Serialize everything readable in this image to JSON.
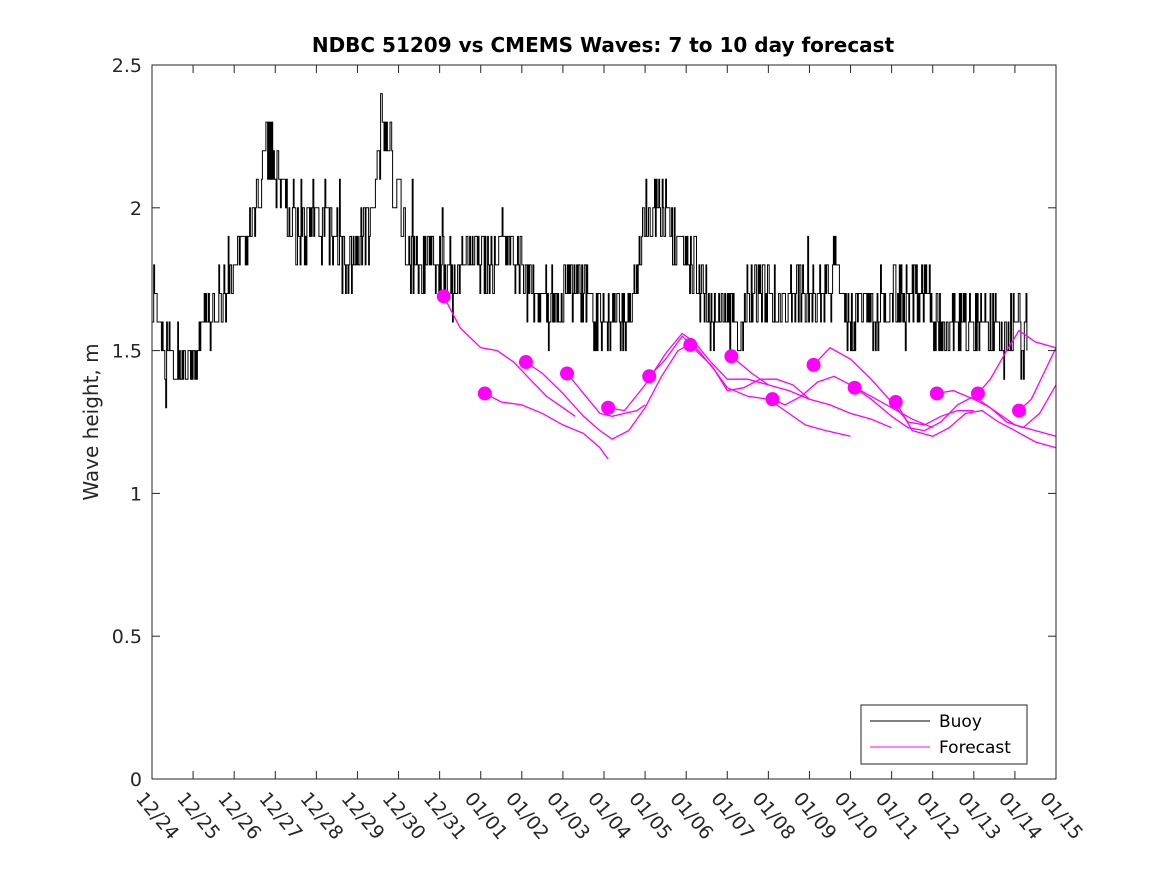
{
  "chart_data": {
    "type": "line",
    "title": "NDBC 51209 vs CMEMS Waves: 7 to 10 day forecast",
    "xlabel": "",
    "ylabel": "Wave height, m",
    "xlim": [
      0,
      22
    ],
    "ylim": [
      0,
      2.5
    ],
    "yticks": [
      0,
      0.5,
      1,
      1.5,
      2,
      2.5
    ],
    "ytick_labels": [
      "0",
      "0.5",
      "1",
      "1.5",
      "2",
      "2.5"
    ],
    "xtick_labels": [
      "12/24",
      "12/25",
      "12/26",
      "12/27",
      "12/28",
      "12/29",
      "12/30",
      "12/31",
      "01/01",
      "01/02",
      "01/03",
      "01/04",
      "01/05",
      "01/06",
      "01/07",
      "01/08",
      "01/09",
      "01/10",
      "01/11",
      "01/12",
      "01/13",
      "01/14",
      "01/15"
    ],
    "legend": {
      "location": "bottom-right",
      "entries": [
        "Buoy",
        "Forecast"
      ]
    },
    "colors": {
      "buoy": "#000000",
      "forecast": "#ff00ff",
      "axis": "#262626"
    },
    "buoy_envelope": {
      "x": [
        0,
        0.3,
        0.5,
        1.0,
        1.2,
        1.5,
        1.8,
        2.2,
        2.5,
        2.8,
        3.0,
        3.3,
        3.6,
        4.0,
        4.3,
        4.7,
        5.0,
        5.3,
        5.6,
        5.9,
        6.2,
        6.5,
        6.8,
        7.0,
        7.3,
        7.6,
        8.0,
        8.3,
        8.6,
        9.0,
        9.3,
        9.6,
        10.0,
        10.4,
        10.8,
        11.2,
        11.5,
        11.8,
        12.0,
        12.3,
        12.6,
        12.9,
        13.2,
        13.6,
        14.0,
        14.3,
        14.6,
        15.0,
        15.4,
        15.8,
        16.2,
        16.6,
        17.0,
        17.4,
        17.8,
        18.2,
        18.6,
        19.0,
        19.4,
        19.8,
        20.2,
        20.6,
        21.0,
        21.3
      ],
      "y": [
        1.65,
        1.55,
        1.45,
        1.45,
        1.55,
        1.65,
        1.75,
        1.85,
        1.95,
        2.25,
        2.15,
        1.95,
        1.95,
        1.95,
        1.95,
        1.8,
        1.85,
        1.95,
        2.3,
        2.1,
        1.85,
        1.8,
        1.8,
        1.8,
        1.75,
        1.8,
        1.85,
        1.8,
        1.9,
        1.75,
        1.7,
        1.65,
        1.7,
        1.75,
        1.6,
        1.65,
        1.6,
        1.75,
        1.95,
        2.05,
        1.9,
        1.85,
        1.8,
        1.6,
        1.65,
        1.6,
        1.7,
        1.7,
        1.65,
        1.7,
        1.7,
        1.75,
        1.6,
        1.6,
        1.65,
        1.7,
        1.7,
        1.65,
        1.55,
        1.6,
        1.6,
        1.55,
        1.55,
        1.5
      ]
    },
    "forecast_series": [
      {
        "start": 7.1,
        "x": [
          7.1,
          7.5,
          8.0,
          8.4,
          8.8,
          9.2,
          9.6,
          10.0,
          10.3
        ],
        "y": [
          1.69,
          1.58,
          1.51,
          1.5,
          1.46,
          1.4,
          1.34,
          1.3,
          1.27
        ]
      },
      {
        "start": 8.1,
        "x": [
          8.1,
          8.5,
          9.0,
          9.5,
          10.0,
          10.5,
          10.9,
          11.1
        ],
        "y": [
          1.35,
          1.32,
          1.31,
          1.28,
          1.24,
          1.21,
          1.16,
          1.12
        ]
      },
      {
        "start": 9.1,
        "x": [
          9.1,
          9.5,
          10.0,
          10.5,
          10.9,
          11.2,
          11.6,
          12.0,
          12.4,
          12.8,
          13.2
        ],
        "y": [
          1.46,
          1.42,
          1.35,
          1.27,
          1.22,
          1.19,
          1.22,
          1.3,
          1.41,
          1.5,
          1.53
        ]
      },
      {
        "start": 10.1,
        "x": [
          10.1,
          10.5,
          10.9,
          11.2,
          11.5,
          11.8,
          12.0
        ],
        "y": [
          1.42,
          1.35,
          1.28,
          1.27,
          1.28,
          1.29,
          1.31
        ]
      },
      {
        "start": 11.1,
        "x": [
          11.1,
          11.5,
          12.0,
          12.5,
          12.9,
          13.2,
          13.6,
          14.0,
          14.5,
          15.0
        ],
        "y": [
          1.3,
          1.29,
          1.38,
          1.49,
          1.56,
          1.53,
          1.46,
          1.4,
          1.4,
          1.38
        ]
      },
      {
        "start": 12.1,
        "x": [
          12.1,
          12.5,
          12.9,
          13.3,
          13.7,
          14.0,
          14.4,
          14.8,
          15.2,
          15.6,
          16.0
        ],
        "y": [
          1.41,
          1.47,
          1.55,
          1.5,
          1.43,
          1.36,
          1.37,
          1.4,
          1.4,
          1.38,
          1.33
        ]
      },
      {
        "start": 13.1,
        "x": [
          13.1,
          13.6,
          14.0,
          14.5,
          15.0,
          15.5,
          15.9,
          16.4,
          17.0
        ],
        "y": [
          1.52,
          1.45,
          1.37,
          1.34,
          1.33,
          1.28,
          1.24,
          1.22,
          1.2
        ]
      },
      {
        "start": 14.1,
        "x": [
          14.1,
          14.6,
          15.0,
          15.5,
          16.0,
          16.5,
          17.0,
          17.5,
          18.0
        ],
        "y": [
          1.48,
          1.42,
          1.38,
          1.36,
          1.33,
          1.31,
          1.28,
          1.26,
          1.23
        ]
      },
      {
        "start": 15.1,
        "x": [
          15.1,
          15.4,
          15.8,
          16.2,
          16.6,
          17.0,
          17.5,
          18.0,
          18.5,
          19.0
        ],
        "y": [
          1.33,
          1.31,
          1.34,
          1.39,
          1.41,
          1.38,
          1.34,
          1.3,
          1.26,
          1.23
        ]
      },
      {
        "start": 16.1,
        "x": [
          16.1,
          16.5,
          17.0,
          17.5,
          18.0,
          18.4,
          18.8,
          19.2,
          19.6,
          20.0
        ],
        "y": [
          1.45,
          1.51,
          1.47,
          1.4,
          1.32,
          1.25,
          1.24,
          1.27,
          1.29,
          1.29
        ]
      },
      {
        "start": 17.1,
        "x": [
          17.1,
          17.5,
          18.0,
          18.4,
          18.8,
          19.2,
          19.6,
          20.0,
          20.5,
          21.0,
          21.5,
          22.0
        ],
        "y": [
          1.37,
          1.33,
          1.27,
          1.23,
          1.22,
          1.25,
          1.31,
          1.34,
          1.29,
          1.24,
          1.22,
          1.2
        ]
      },
      {
        "start": 18.1,
        "x": [
          18.1,
          18.5,
          19.0,
          19.4,
          19.8,
          20.2,
          20.6,
          21.0,
          21.5,
          22.0
        ],
        "y": [
          1.32,
          1.22,
          1.2,
          1.23,
          1.28,
          1.29,
          1.25,
          1.22,
          1.18,
          1.16
        ]
      },
      {
        "start": 19.1,
        "x": [
          19.1,
          19.5,
          20.0,
          20.4,
          20.8,
          21.2,
          21.6,
          22.0
        ],
        "y": [
          1.35,
          1.36,
          1.33,
          1.3,
          1.25,
          1.23,
          1.28,
          1.38
        ]
      },
      {
        "start": 20.1,
        "x": [
          20.1,
          20.4,
          20.8,
          21.1,
          21.5,
          22.0
        ],
        "y": [
          1.35,
          1.4,
          1.5,
          1.57,
          1.53,
          1.51
        ]
      },
      {
        "start": 21.1,
        "x": [
          21.1,
          21.4,
          21.7,
          22.0
        ],
        "y": [
          1.29,
          1.33,
          1.42,
          1.51
        ]
      }
    ]
  }
}
